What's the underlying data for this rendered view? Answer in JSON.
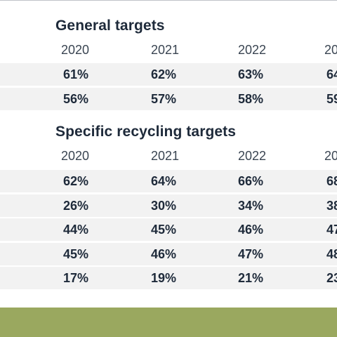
{
  "general": {
    "title": "General targets",
    "years": [
      "2020",
      "2021",
      "2022",
      "20"
    ],
    "rows": [
      [
        "61%",
        "62%",
        "63%",
        "64"
      ],
      [
        "56%",
        "57%",
        "58%",
        "59"
      ]
    ]
  },
  "specific": {
    "title": "Specific recycling targets",
    "years": [
      "2020",
      "2021",
      "2022",
      "20"
    ],
    "rows": [
      [
        "62%",
        "64%",
        "66%",
        "68"
      ],
      [
        "26%",
        "30%",
        "34%",
        "38"
      ],
      [
        "44%",
        "45%",
        "46%",
        "47"
      ],
      [
        "45%",
        "46%",
        "47%",
        "48"
      ],
      [
        "17%",
        "19%",
        "21%",
        "23"
      ]
    ]
  },
  "colors": {
    "text": "#1e2a3a",
    "row_background": "#f2f2f2",
    "footer_bar": "#9aa85f"
  }
}
